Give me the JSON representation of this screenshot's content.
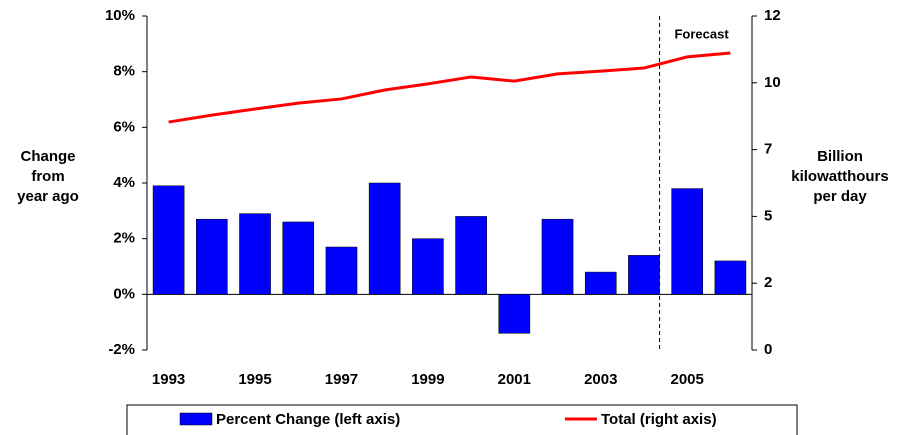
{
  "chart_data": {
    "type": "bar",
    "categories": [
      "1993",
      null,
      "1995",
      null,
      "1997",
      null,
      "1999",
      null,
      "2001",
      null,
      "2003",
      null,
      "2005",
      null
    ],
    "series": [
      {
        "name": "Percent Change (left axis)",
        "type": "bar",
        "color": "#0000ff",
        "axis": "y",
        "values": [
          3.9,
          2.7,
          2.9,
          2.6,
          1.7,
          4.0,
          2.0,
          2.8,
          -1.4,
          2.7,
          0.8,
          1.4,
          3.8,
          1.2
        ]
      },
      {
        "name": "Total (right axis)",
        "type": "line",
        "color": "#ff0000",
        "axis": "y2",
        "values": [
          8.19,
          8.44,
          8.66,
          8.87,
          9.02,
          9.34,
          9.56,
          9.81,
          9.66,
          9.92,
          10.02,
          10.13,
          10.53,
          10.67
        ]
      }
    ],
    "ylim": [
      -2,
      10
    ],
    "yticks": [
      {
        "value": -2,
        "label": "-2%"
      },
      {
        "value": 0,
        "label": "0%"
      },
      {
        "value": 2,
        "label": "2%"
      },
      {
        "value": 4,
        "label": "4%"
      },
      {
        "value": 6,
        "label": "6%"
      },
      {
        "value": 8,
        "label": "8%"
      },
      {
        "value": 10,
        "label": "10%"
      }
    ],
    "y2lim": [
      0,
      12
    ],
    "y2ticks": [
      0,
      {
        "value": 2.4,
        "label": "2"
      },
      {
        "value": 4.8,
        "label": "5"
      },
      {
        "value": 7.2,
        "label": "7"
      },
      {
        "value": 9.6,
        "label": "10"
      },
      12
    ],
    "y_label": [
      "Change",
      "from",
      "year ago"
    ],
    "y2_label": [
      "Billion",
      "kilowatthours",
      "per day"
    ],
    "annotation": "Forecast",
    "grid": false,
    "legend": "bottom"
  }
}
